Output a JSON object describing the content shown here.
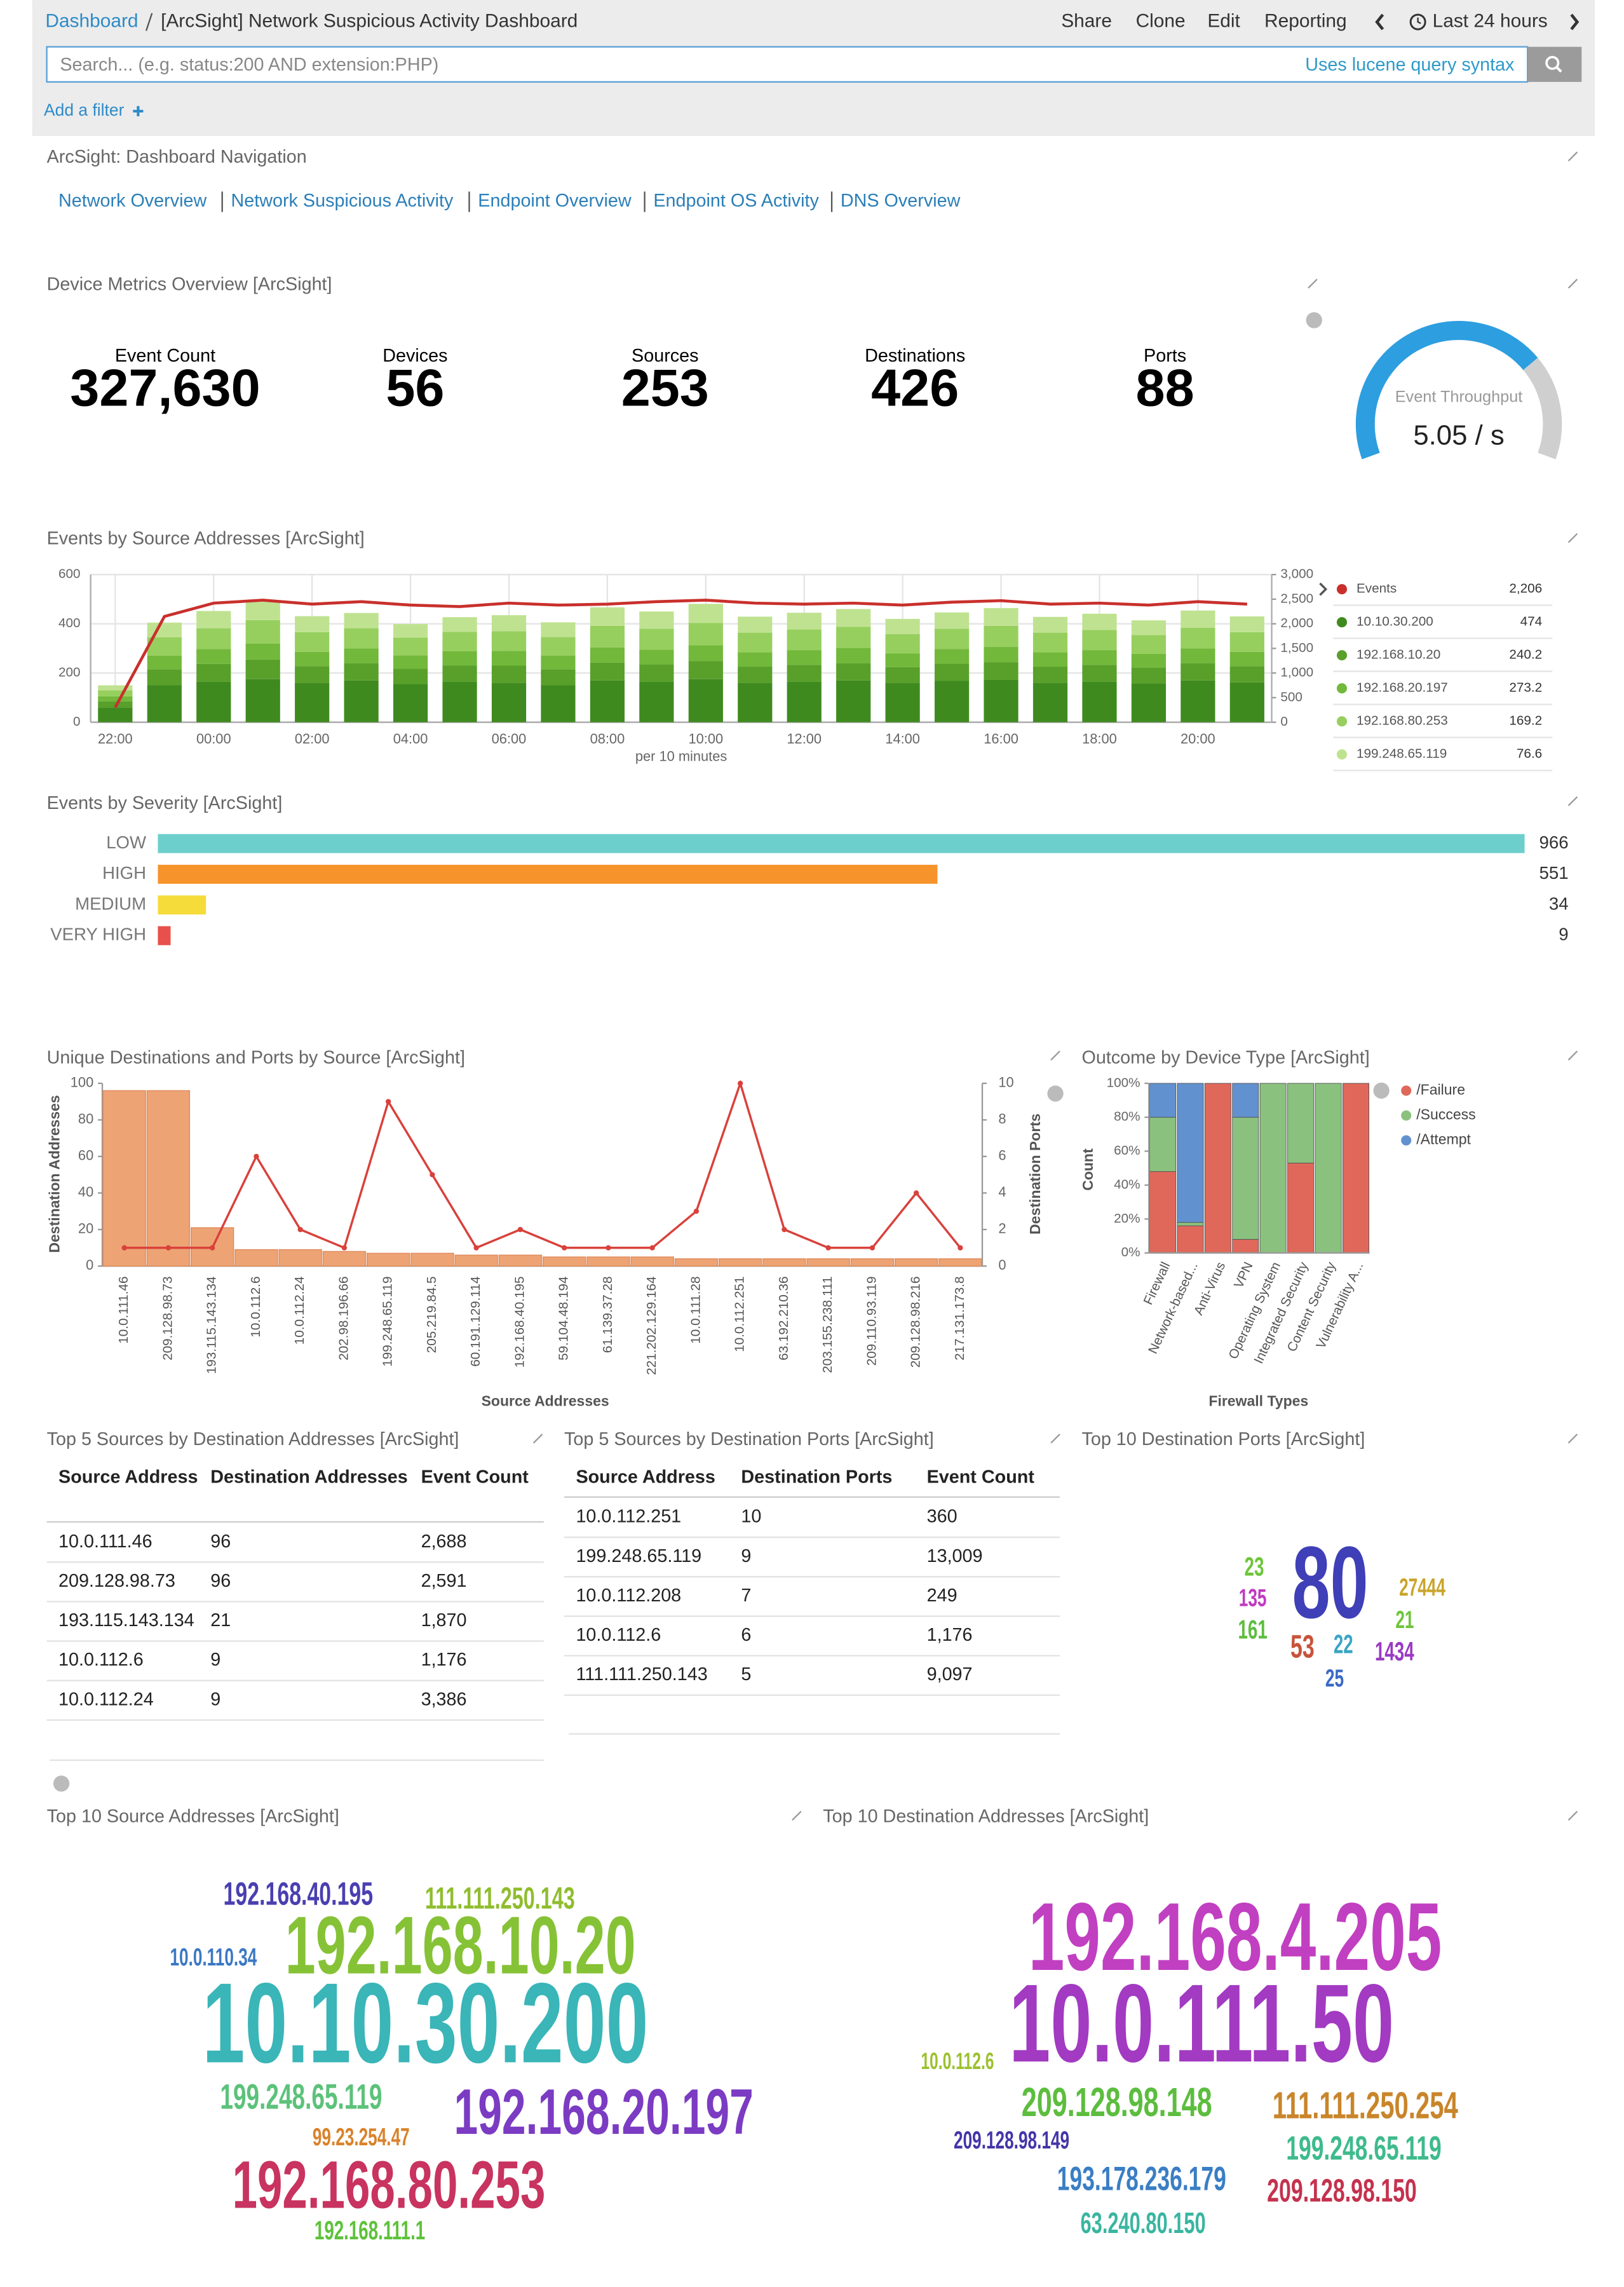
{
  "header": {
    "breadcrumb": "Dashboard",
    "title": "[ArcSight] Network Suspicious Activity Dashboard",
    "actions": [
      "Share",
      "Clone",
      "Edit",
      "Reporting"
    ],
    "time_range": "Last 24 hours",
    "search_placeholder": "Search... (e.g. status:200 AND extension:PHP)",
    "search_hint": "Uses lucene query syntax",
    "add_filter": "Add a filter"
  },
  "navigation": {
    "title": "ArcSight: Dashboard Navigation",
    "links": [
      "Network Overview",
      "Network Suspicious Activity",
      "Endpoint Overview",
      "Endpoint OS Activity",
      "DNS Overview"
    ]
  },
  "metrics": {
    "title": "Device Metrics Overview [ArcSight]",
    "items": [
      {
        "label": "Event Count",
        "value": "327,630"
      },
      {
        "label": "Devices",
        "value": "56"
      },
      {
        "label": "Sources",
        "value": "253"
      },
      {
        "label": "Destinations",
        "value": "426"
      },
      {
        "label": "Ports",
        "value": "88"
      }
    ],
    "gauge": {
      "label": "Event Throughput",
      "value": "5.05 / s"
    }
  },
  "events_by_source": {
    "title": "Events by Source Addresses [ArcSight]",
    "chart_data": {
      "type": "bar",
      "stacked": true,
      "categories": [
        "22:00",
        null,
        "00:00",
        null,
        "02:00",
        null,
        "04:00",
        null,
        "06:00",
        null,
        "08:00",
        null,
        "10:00",
        null,
        "12:00",
        null,
        "14:00",
        null,
        "16:00",
        null,
        "18:00",
        null,
        "20:00",
        null
      ],
      "xlabel": "per 10 minutes",
      "ylim": [
        0,
        600
      ],
      "yticks": [
        0,
        200,
        400,
        600
      ],
      "y2lim": [
        0,
        3000
      ],
      "y2ticks": [
        0,
        500,
        {
          "value": 1000,
          "label": "1,000"
        },
        {
          "value": 1500,
          "label": "1,500"
        },
        {
          "value": 2000,
          "label": "2,000"
        },
        {
          "value": 2500,
          "label": "2,500"
        },
        {
          "value": 3000,
          "label": "3,000"
        }
      ],
      "series": [
        {
          "name": "Events",
          "type": "line",
          "axis": "y2",
          "color": "#c9302c",
          "legend_value": "2,206",
          "values": [
            300,
            2150,
            2420,
            2480,
            2400,
            2450,
            2380,
            2350,
            2420,
            2380,
            2400,
            2450,
            2480,
            2420,
            2400,
            2420,
            2380,
            2440,
            2470,
            2400,
            2420,
            2380,
            2450,
            2400
          ]
        },
        {
          "name": "10.10.30.200",
          "color": "#3f8a1f",
          "legend_value": "474",
          "values": [
            60,
            150,
            165,
            175,
            160,
            170,
            155,
            165,
            160,
            150,
            170,
            165,
            175,
            160,
            165,
            170,
            160,
            168,
            172,
            160,
            165,
            158,
            170,
            162
          ]
        },
        {
          "name": "192.168.10.20",
          "color": "#58a02a",
          "legend_value": "240.2",
          "values": [
            25,
            65,
            72,
            80,
            68,
            70,
            62,
            66,
            70,
            65,
            72,
            70,
            74,
            66,
            68,
            70,
            64,
            70,
            72,
            66,
            68,
            64,
            70,
            66
          ]
        },
        {
          "name": "192.168.20.197",
          "color": "#72b83a",
          "legend_value": "273.2",
          "values": [
            20,
            55,
            60,
            65,
            58,
            60,
            55,
            58,
            60,
            56,
            62,
            60,
            64,
            58,
            60,
            62,
            56,
            60,
            62,
            58,
            60,
            56,
            60,
            58
          ]
        },
        {
          "name": "192.168.80.253",
          "color": "#96cf5e",
          "legend_value": "169.2",
          "values": [
            25,
            75,
            85,
            95,
            80,
            82,
            72,
            78,
            80,
            75,
            88,
            85,
            90,
            80,
            84,
            86,
            78,
            82,
            86,
            80,
            82,
            76,
            84,
            80
          ]
        },
        {
          "name": "199.248.65.119",
          "color": "#bfe290",
          "legend_value": "76.6",
          "values": [
            20,
            60,
            70,
            80,
            65,
            62,
            55,
            60,
            65,
            60,
            75,
            70,
            78,
            65,
            68,
            72,
            62,
            66,
            72,
            64,
            66,
            60,
            70,
            64
          ]
        }
      ]
    }
  },
  "events_by_severity": {
    "title": "Events by Severity [ArcSight]",
    "chart_data": {
      "type": "bar",
      "orientation": "horizontal",
      "categories": [
        "LOW",
        "HIGH",
        "MEDIUM",
        "VERY HIGH"
      ],
      "values": [
        966,
        551,
        34,
        9
      ],
      "colors": [
        "#6dcfcb",
        "#f7932b",
        "#f5dc3a",
        "#e8504b"
      ]
    }
  },
  "unique_destinations": {
    "title": "Unique Destinations and Ports by Source [ArcSight]",
    "chart_data": {
      "type": "bar",
      "categories": [
        "10.0.111.46",
        "209.128.98.73",
        "193.115.143.134",
        "10.0.112.6",
        "10.0.112.24",
        "202.98.196.66",
        "199.248.65.119",
        "205.219.84.5",
        "60.191.129.114",
        "192.168.40.195",
        "59.104.48.194",
        "61.139.37.28",
        "221.202.129.164",
        "10.0.111.28",
        "10.0.112.251",
        "63.192.210.36",
        "203.155.238.111",
        "209.110.93.119",
        "209.128.98.216",
        "217.131.173.8"
      ],
      "xlabel": "Source Addresses",
      "ylabel": "Destination Addresses",
      "y2label": "Destination Ports",
      "ylim": [
        0,
        100
      ],
      "yticks": [
        0,
        20,
        40,
        60,
        80,
        100
      ],
      "y2lim": [
        0,
        10
      ],
      "y2ticks": [
        0,
        2,
        4,
        6,
        8,
        10
      ],
      "series": [
        {
          "color": "#eda374",
          "values": [
            96,
            96,
            21,
            9,
            9,
            8,
            7,
            7,
            6,
            6,
            5,
            5,
            5,
            4,
            4,
            4,
            4,
            4,
            4,
            4
          ]
        },
        {
          "type": "line",
          "axis": "y2",
          "color": "#d9413b",
          "values": [
            1,
            1,
            1,
            6,
            2,
            1,
            9,
            5,
            1,
            2,
            1,
            1,
            1,
            3,
            10,
            2,
            1,
            1,
            4,
            1
          ]
        }
      ]
    }
  },
  "outcome_by_device": {
    "title": "Outcome by Device Type [ArcSight]",
    "chart_data": {
      "type": "bar",
      "stacked": true,
      "categories": [
        "Firewall",
        "Network-based...",
        "Anti-Virus",
        "VPN",
        "Operating System",
        "Integrated Security",
        "Content Security",
        "Vulnerability A..."
      ],
      "xlabel": "Firewall Types",
      "ylabel": "Count",
      "ylim": [
        0,
        100
      ],
      "yticks": [
        {
          "value": 0,
          "label": "0%"
        },
        {
          "value": 20,
          "label": "20%"
        },
        {
          "value": 40,
          "label": "40%"
        },
        {
          "value": 60,
          "label": "60%"
        },
        {
          "value": 80,
          "label": "80%"
        },
        {
          "value": 100,
          "label": "100%"
        }
      ],
      "series": [
        {
          "name": "/Failure",
          "color": "#e0685a",
          "values": [
            48,
            16,
            100,
            8,
            0,
            53,
            0,
            100
          ]
        },
        {
          "name": "/Success",
          "color": "#8bc17e",
          "values": [
            32,
            2,
            0,
            72,
            100,
            47,
            100,
            0
          ]
        },
        {
          "name": "/Attempt",
          "color": "#6291cf",
          "values": [
            20,
            82,
            0,
            20,
            0,
            0,
            0,
            0
          ]
        }
      ]
    }
  },
  "top_sources_by_dest_addresses": {
    "title": "Top 5 Sources by Destination Addresses [ArcSight]",
    "columns": [
      "Source Address",
      "Destination Addresses",
      "Event Count"
    ],
    "rows": [
      [
        "10.0.111.46",
        "96",
        "2,688"
      ],
      [
        "209.128.98.73",
        "96",
        "2,591"
      ],
      [
        "193.115.143.134",
        "21",
        "1,870"
      ],
      [
        "10.0.112.6",
        "9",
        "1,176"
      ],
      [
        "10.0.112.24",
        "9",
        "3,386"
      ]
    ]
  },
  "top_sources_by_dest_ports": {
    "title": "Top 5 Sources by Destination Ports [ArcSight]",
    "columns": [
      "Source Address",
      "Destination Ports",
      "Event Count"
    ],
    "rows": [
      [
        "10.0.112.251",
        "10",
        "360"
      ],
      [
        "199.248.65.119",
        "9",
        "13,009"
      ],
      [
        "10.0.112.208",
        "7",
        "249"
      ],
      [
        "10.0.112.6",
        "6",
        "1,176"
      ],
      [
        "111.111.250.143",
        "5",
        "9,097"
      ]
    ]
  },
  "top_dest_ports": {
    "title": "Top 10 Destination Ports [ArcSight]",
    "words": [
      {
        "text": "80",
        "color": "#3f3fb8"
      },
      {
        "text": "23",
        "color": "#6ec53a"
      },
      {
        "text": "135",
        "color": "#c03ac0"
      },
      {
        "text": "161",
        "color": "#5cbd3e"
      },
      {
        "text": "53",
        "color": "#c8533a"
      },
      {
        "text": "22",
        "color": "#3aa5c4"
      },
      {
        "text": "25",
        "color": "#3a6ac4"
      },
      {
        "text": "27444",
        "color": "#c9a52a"
      },
      {
        "text": "21",
        "color": "#6ec53a"
      },
      {
        "text": "1434",
        "color": "#9a3ac4"
      }
    ]
  },
  "top_source_addresses": {
    "title": "Top 10 Source Addresses [ArcSight]",
    "words": [
      {
        "text": "192.168.40.195",
        "color": "#4a3fb0"
      },
      {
        "text": "111.111.250.143",
        "color": "#8fbd2e"
      },
      {
        "text": "10.0.110.34",
        "color": "#3b78c4"
      },
      {
        "text": "192.168.10.20",
        "color": "#86c236"
      },
      {
        "text": "10.10.30.200",
        "color": "#3ab5b8"
      },
      {
        "text": "199.248.65.119",
        "color": "#5cc27a"
      },
      {
        "text": "192.168.20.197",
        "color": "#7b3bc2"
      },
      {
        "text": "99.23.254.47",
        "color": "#d9822b"
      },
      {
        "text": "192.168.80.253",
        "color": "#c8335f"
      },
      {
        "text": "192.168.111.1",
        "color": "#5ec23a"
      }
    ]
  },
  "top_destination_addresses": {
    "title": "Top 10 Destination Addresses [ArcSight]",
    "words": [
      {
        "text": "192.168.4.205",
        "color": "#c13fc1"
      },
      {
        "text": "10.0.112.6",
        "color": "#9cc12e"
      },
      {
        "text": "10.0.111.50",
        "color": "#a23ac2"
      },
      {
        "text": "209.128.98.148",
        "color": "#5cbd3e"
      },
      {
        "text": "111.111.250.254",
        "color": "#c9852a"
      },
      {
        "text": "209.128.98.149",
        "color": "#4435a8"
      },
      {
        "text": "199.248.65.119",
        "color": "#3ebb8c"
      },
      {
        "text": "193.178.236.179",
        "color": "#3a7ec4"
      },
      {
        "text": "209.128.98.150",
        "color": "#c4324e"
      },
      {
        "text": "63.240.80.150",
        "color": "#3ab5a0"
      }
    ]
  }
}
